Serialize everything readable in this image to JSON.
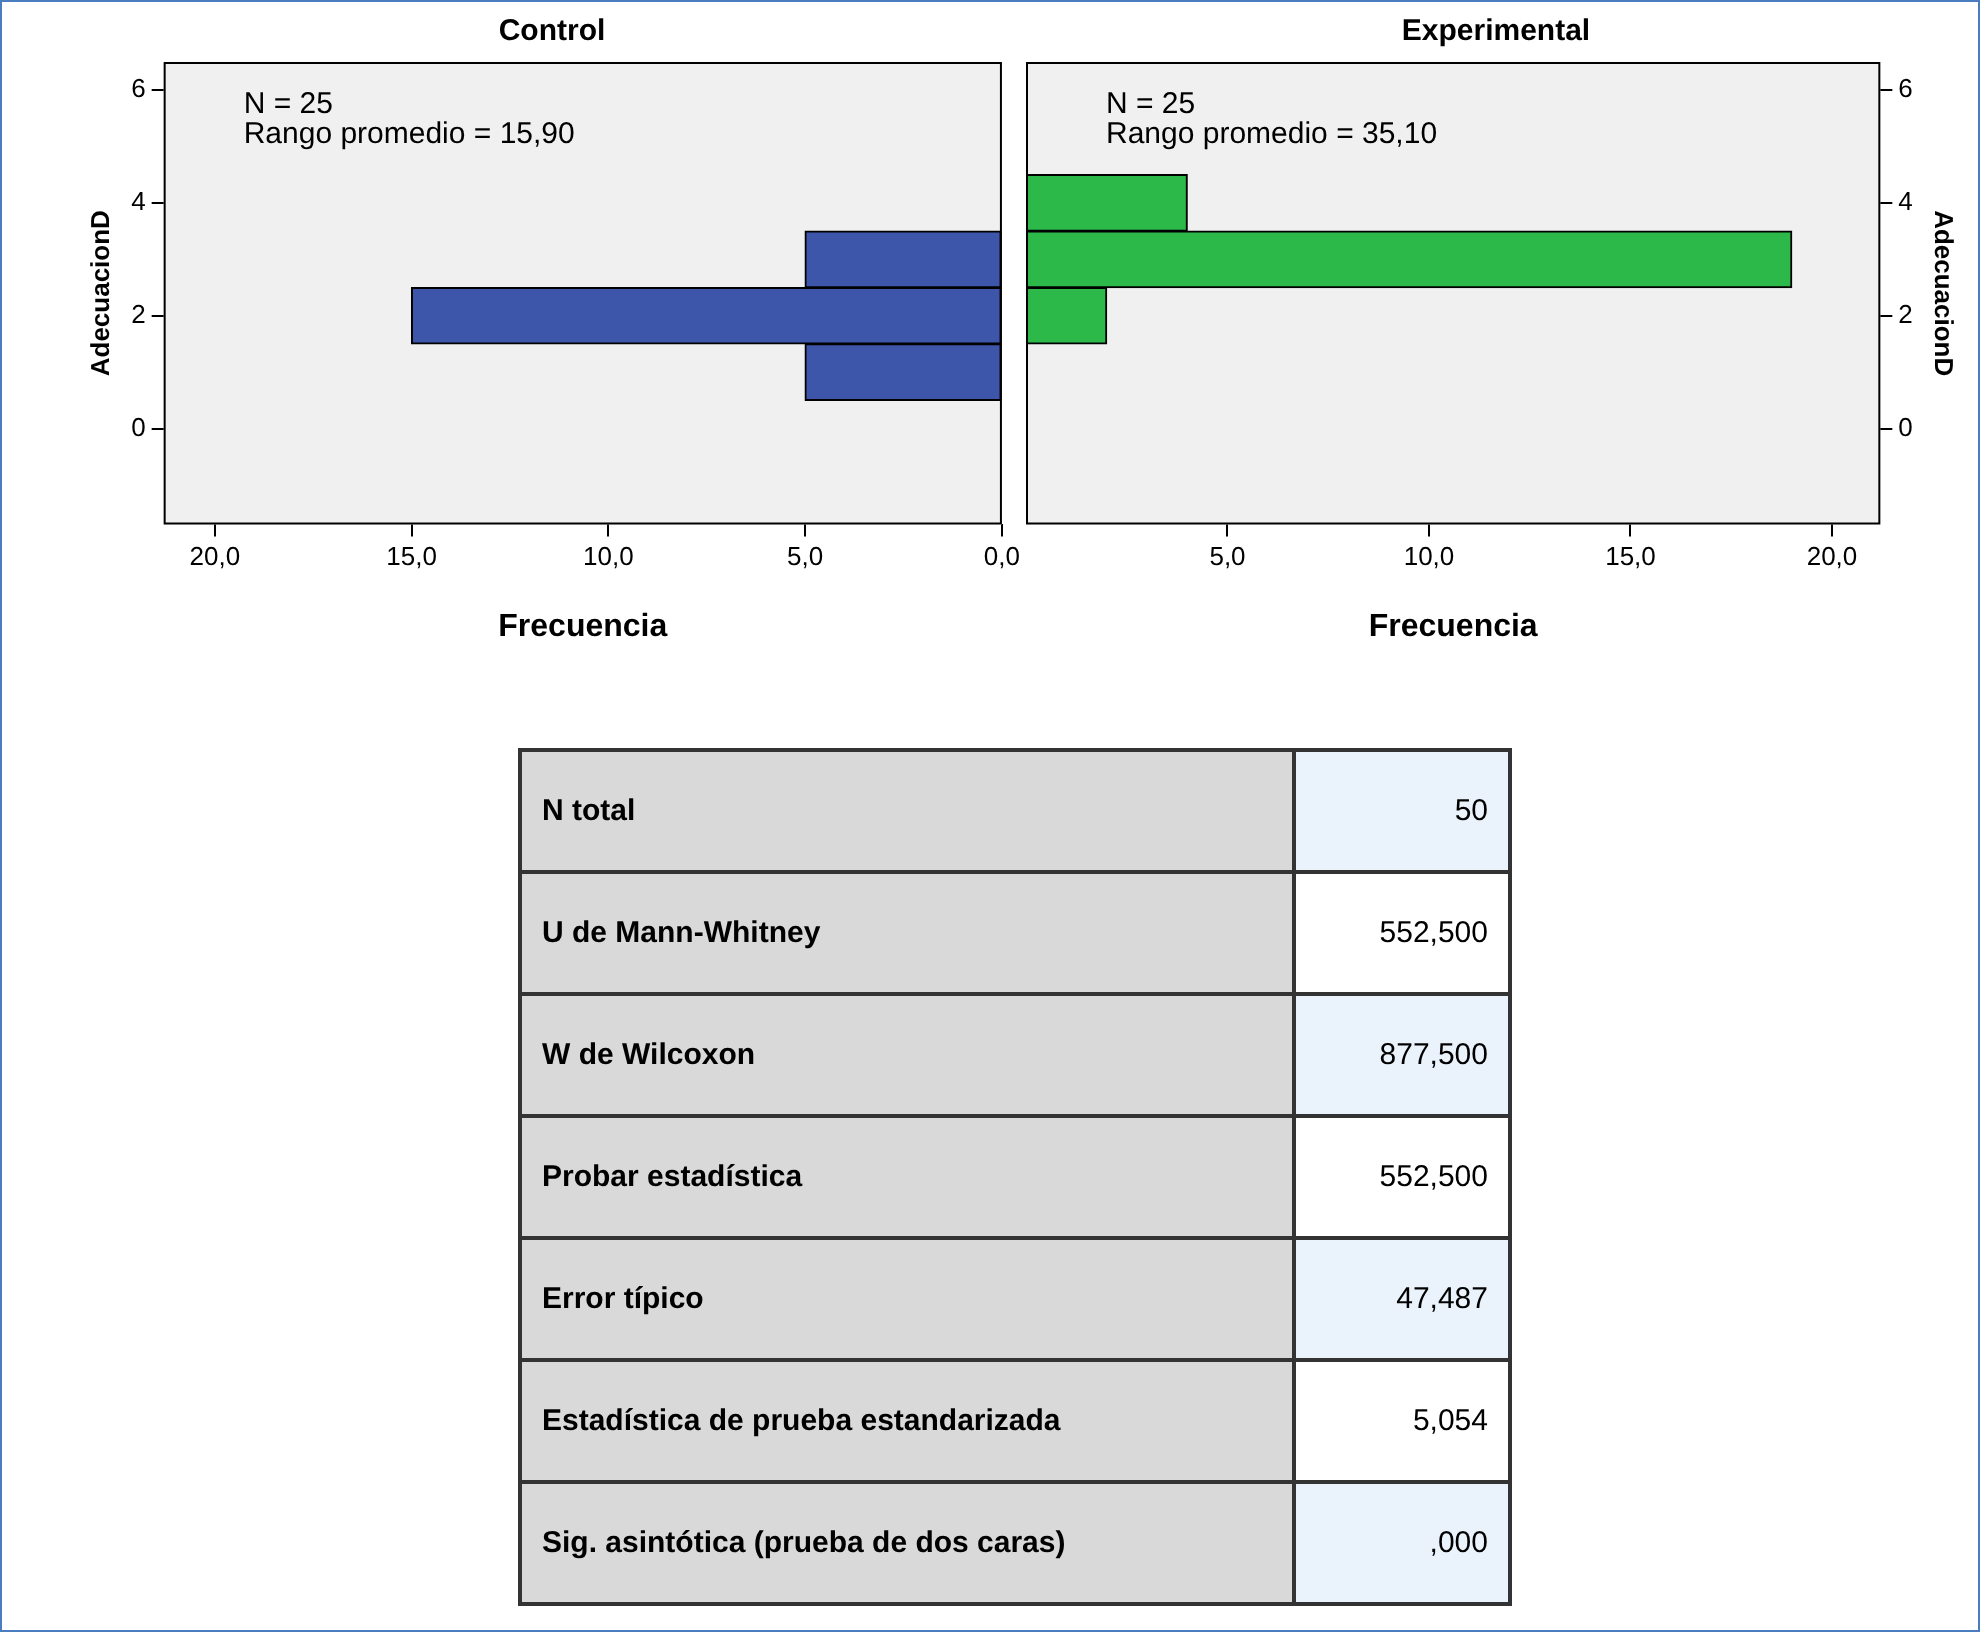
{
  "chart_data": [
    {
      "type": "bar",
      "orientation": "horizontal",
      "title": "Control",
      "xlabel": "Frecuencia",
      "ylabel": "AdecuacionD",
      "x": [
        1,
        2,
        3,
        4
      ],
      "values": [
        5,
        15,
        5,
        0
      ],
      "color": "#3e56a9",
      "xlim": [
        21.3,
        0
      ],
      "xticks": [
        {
          "value": 20,
          "label": "20,0"
        },
        {
          "value": 15,
          "label": "15,0"
        },
        {
          "value": 10,
          "label": "10,0"
        },
        {
          "value": 5,
          "label": "5,0"
        },
        {
          "value": 0,
          "label": "0,0"
        }
      ],
      "ylim": [
        -1.7,
        6.5
      ],
      "yticks": [
        0,
        2,
        4,
        6
      ],
      "annotations": [
        "N = 25",
        "Rango promedio = 15,90"
      ]
    },
    {
      "type": "bar",
      "orientation": "horizontal",
      "title": "Experimental",
      "xlabel": "Frecuencia",
      "ylabel": "AdecuacionD",
      "x": [
        1,
        2,
        3,
        4
      ],
      "values": [
        0,
        2,
        19,
        4
      ],
      "color": "#2db84a",
      "xlim": [
        0,
        21.2
      ],
      "xticks": [
        {
          "value": 5,
          "label": "5,0"
        },
        {
          "value": 10,
          "label": "10,0"
        },
        {
          "value": 15,
          "label": "15,0"
        },
        {
          "value": 20,
          "label": "20,0"
        }
      ],
      "ylim": [
        -1.7,
        6.5
      ],
      "yticks": [
        0,
        2,
        4,
        6
      ],
      "annotations": [
        "N = 25",
        "Rango promedio = 35,10"
      ]
    },
    {
      "type": "other",
      "annotations": [
        "N total",
        "50",
        "U de Mann-Whitney",
        "552,500",
        "W de Wilcoxon",
        "877,500",
        "Probar estadística",
        "552,500",
        "Error típico",
        "47,487",
        "Estadística de prueba estandarizada",
        "5,054",
        "Sig. asintótica (prueba de dos caras)",
        ",000"
      ]
    }
  ]
}
